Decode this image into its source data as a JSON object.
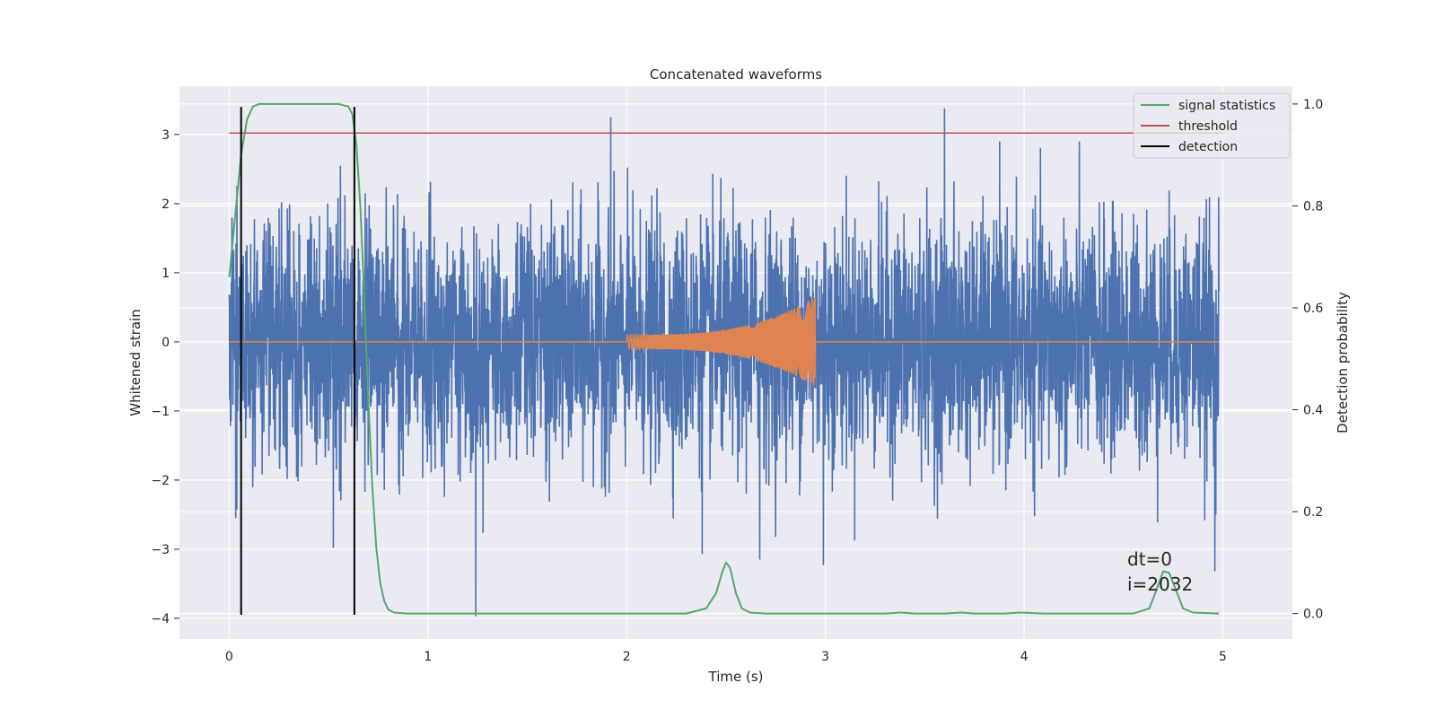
{
  "chart_data": {
    "type": "line",
    "title": "Concatenated waveforms",
    "xlabel": "Time (s)",
    "ylabel": "Whitened strain",
    "ylabel_right": "Detection probability",
    "xlim": [
      -0.25,
      5.35
    ],
    "ylim": [
      -4.3,
      3.7
    ],
    "ylim_right": [
      -0.05,
      1.035
    ],
    "x_ticks": [
      0,
      1,
      2,
      3,
      4,
      5
    ],
    "y_ticks": [
      -4,
      -3,
      -2,
      -1,
      0,
      1,
      2,
      3
    ],
    "y_ticks_right": [
      0.0,
      0.2,
      0.4,
      0.6,
      0.8,
      1.0
    ],
    "y_tick_labels_right": [
      "0.0",
      "0.2",
      "0.4",
      "0.6",
      "0.8",
      "1.0"
    ],
    "grid": true,
    "legend_position": "top-right",
    "colors": {
      "background": "#eaeaf2",
      "grid": "#ffffff",
      "strain": "#4c72b0",
      "injection": "#dd8452",
      "signal_statistics": "#55a868",
      "threshold": "#c44e52",
      "detection": "#000000"
    },
    "series": [
      {
        "name": "signal statistics",
        "axis": "right",
        "x": [
          0.0,
          0.03,
          0.06,
          0.09,
          0.12,
          0.15,
          0.2,
          0.3,
          0.4,
          0.5,
          0.55,
          0.6,
          0.62,
          0.64,
          0.66,
          0.68,
          0.7,
          0.72,
          0.74,
          0.76,
          0.78,
          0.8,
          0.83,
          0.9,
          1.2,
          1.5,
          2.0,
          2.3,
          2.4,
          2.45,
          2.48,
          2.5,
          2.52,
          2.55,
          2.58,
          2.62,
          2.7,
          3.0,
          3.3,
          3.38,
          3.45,
          3.6,
          3.68,
          3.75,
          3.9,
          3.98,
          4.1,
          4.3,
          4.55,
          4.63,
          4.66,
          4.7,
          4.73,
          4.76,
          4.8,
          4.85,
          4.98
        ],
        "y": [
          0.66,
          0.78,
          0.9,
          0.97,
          0.995,
          1.0,
          1.0,
          1.0,
          1.0,
          1.0,
          1.0,
          0.995,
          0.98,
          0.92,
          0.8,
          0.62,
          0.42,
          0.25,
          0.13,
          0.06,
          0.025,
          0.008,
          0.002,
          0.0,
          0.0,
          0.0,
          0.0,
          0.0,
          0.01,
          0.04,
          0.08,
          0.1,
          0.09,
          0.04,
          0.01,
          0.002,
          0.0,
          0.0,
          0.0,
          0.002,
          0.0,
          0.0,
          0.002,
          0.0,
          0.0,
          0.002,
          0.0,
          0.0,
          0.0,
          0.01,
          0.04,
          0.083,
          0.08,
          0.05,
          0.01,
          0.002,
          0.0
        ]
      },
      {
        "name": "threshold",
        "axis": "left",
        "x": [
          0.0,
          5.0
        ],
        "y": [
          3.02,
          3.02
        ]
      },
      {
        "name": "detection",
        "axis": "left",
        "x_positions": [
          0.06,
          0.63
        ],
        "y_range": [
          -3.95,
          3.4
        ]
      }
    ],
    "strain_trace": {
      "x_range": [
        0.0,
        4.98
      ],
      "noise_scale": 1.0,
      "marked_spikes": [
        {
          "x": 0.56,
          "y": 2.55
        },
        {
          "x": 1.24,
          "y": -3.97
        },
        {
          "x": 1.92,
          "y": 3.25
        },
        {
          "x": 2.38,
          "y": -3.07
        },
        {
          "x": 2.67,
          "y": -3.15
        },
        {
          "x": 2.99,
          "y": -3.23
        },
        {
          "x": 3.6,
          "y": 3.38
        },
        {
          "x": 4.96,
          "y": -3.32
        }
      ]
    },
    "injection_trace": {
      "x_start": 2.0,
      "x_end": 2.95,
      "amplitude_start": 0.1,
      "amplitude_end": 0.65
    },
    "annotations": [
      "dt=0",
      "i=2032"
    ],
    "legend": [
      "signal statistics",
      "threshold",
      "detection"
    ]
  }
}
